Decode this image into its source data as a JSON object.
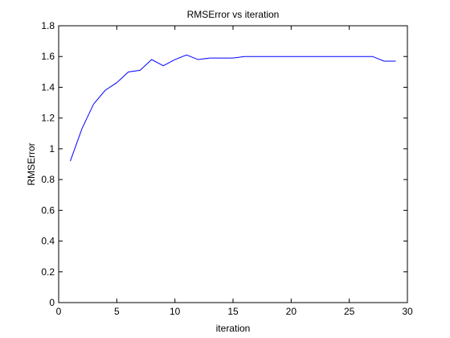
{
  "chart_data": {
    "type": "line",
    "title": "RMSError vs iteration",
    "xlabel": "iteration",
    "ylabel": "RMSError",
    "xlim": [
      0,
      30
    ],
    "ylim": [
      0,
      1.8
    ],
    "x_ticks": [
      0,
      5,
      10,
      15,
      20,
      25,
      30
    ],
    "y_ticks": [
      0,
      0.2,
      0.4,
      0.6,
      0.8,
      1,
      1.2,
      1.4,
      1.6,
      1.8
    ],
    "grid": false,
    "line_color": "#0000ff",
    "series": [
      {
        "x": [
          1,
          2,
          3,
          4,
          5,
          6,
          7,
          8,
          9,
          10,
          11,
          12,
          13,
          14,
          15,
          16,
          17,
          18,
          19,
          20,
          21,
          22,
          23,
          24,
          25,
          26,
          27,
          28,
          29
        ],
        "y": [
          0.92,
          1.13,
          1.29,
          1.38,
          1.43,
          1.5,
          1.51,
          1.58,
          1.54,
          1.58,
          1.61,
          1.58,
          1.59,
          1.59,
          1.59,
          1.6,
          1.6,
          1.6,
          1.6,
          1.6,
          1.6,
          1.6,
          1.6,
          1.6,
          1.6,
          1.6,
          1.6,
          1.57,
          1.57
        ]
      }
    ]
  }
}
